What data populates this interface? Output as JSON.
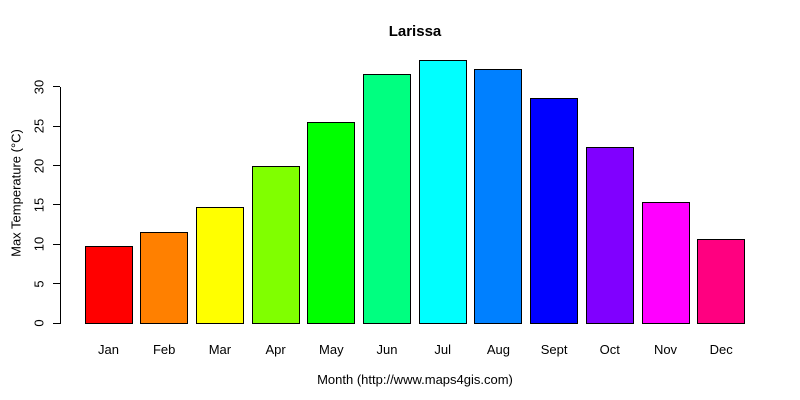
{
  "chart_data": {
    "type": "bar",
    "title": "Larissa",
    "xlabel": "Month (http://www.maps4gis.com)",
    "ylabel": "Max Temperature (°C)",
    "categories": [
      "Jan",
      "Feb",
      "Mar",
      "Apr",
      "May",
      "Jun",
      "Jul",
      "Aug",
      "Sept",
      "Oct",
      "Nov",
      "Dec"
    ],
    "values": [
      9.8,
      11.6,
      14.7,
      19.9,
      25.6,
      31.6,
      33.4,
      32.3,
      28.6,
      22.3,
      15.4,
      10.7
    ],
    "bar_colors": [
      "#FF0000",
      "#FF8000",
      "#FFFF00",
      "#80FF00",
      "#00FF00",
      "#00FF80",
      "#00FFFF",
      "#0080FF",
      "#0000FF",
      "#8000FF",
      "#FF00FF",
      "#FF0080"
    ],
    "bar_border_color": "#000000",
    "yticks": [
      0,
      5,
      10,
      15,
      20,
      25,
      30
    ],
    "ylim": [
      0,
      33.4
    ],
    "grid": false,
    "legend": "none"
  }
}
